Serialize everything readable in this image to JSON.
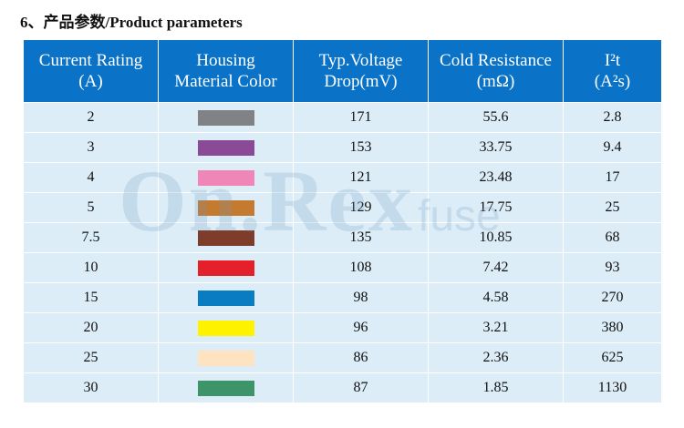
{
  "heading": "6、产品参数/Product parameters",
  "watermark": {
    "main": "On.Rex",
    "sub": "fuse"
  },
  "table": {
    "headers": [
      {
        "line1": "Current Rating",
        "line2": "(A)"
      },
      {
        "line1": "Housing",
        "line2": "Material Color"
      },
      {
        "line1": "Typ.Voltage",
        "line2": "Drop(mV)"
      },
      {
        "line1": "Cold Resistance",
        "line2": "(mΩ)"
      },
      {
        "line1": "I²t",
        "line2": "(A²s)"
      }
    ],
    "rows": [
      {
        "rating": "2",
        "color": "#808285",
        "voltage": "171",
        "resistance": "55.6",
        "i2t": "2.8"
      },
      {
        "rating": "3",
        "color": "#8a4a96",
        "voltage": "153",
        "resistance": "33.75",
        "i2t": "9.4"
      },
      {
        "rating": "4",
        "color": "#ef86b7",
        "voltage": "121",
        "resistance": "23.48",
        "i2t": "17"
      },
      {
        "rating": "5",
        "color": "#c47a2f",
        "voltage": "129",
        "resistance": "17.75",
        "i2t": "25"
      },
      {
        "rating": "7.5",
        "color": "#7e3d2b",
        "voltage": "135",
        "resistance": "10.85",
        "i2t": "68"
      },
      {
        "rating": "10",
        "color": "#e4202a",
        "voltage": "108",
        "resistance": "7.42",
        "i2t": "93"
      },
      {
        "rating": "15",
        "color": "#0a7cc1",
        "voltage": "98",
        "resistance": "4.58",
        "i2t": "270"
      },
      {
        "rating": "20",
        "color": "#fef200",
        "voltage": "96",
        "resistance": "3.21",
        "i2t": "380"
      },
      {
        "rating": "25",
        "color": "#fde3c0",
        "voltage": "86",
        "resistance": "2.36",
        "i2t": "625"
      },
      {
        "rating": "30",
        "color": "#3c9468",
        "voltage": "87",
        "resistance": "1.85",
        "i2t": "1130"
      }
    ]
  }
}
